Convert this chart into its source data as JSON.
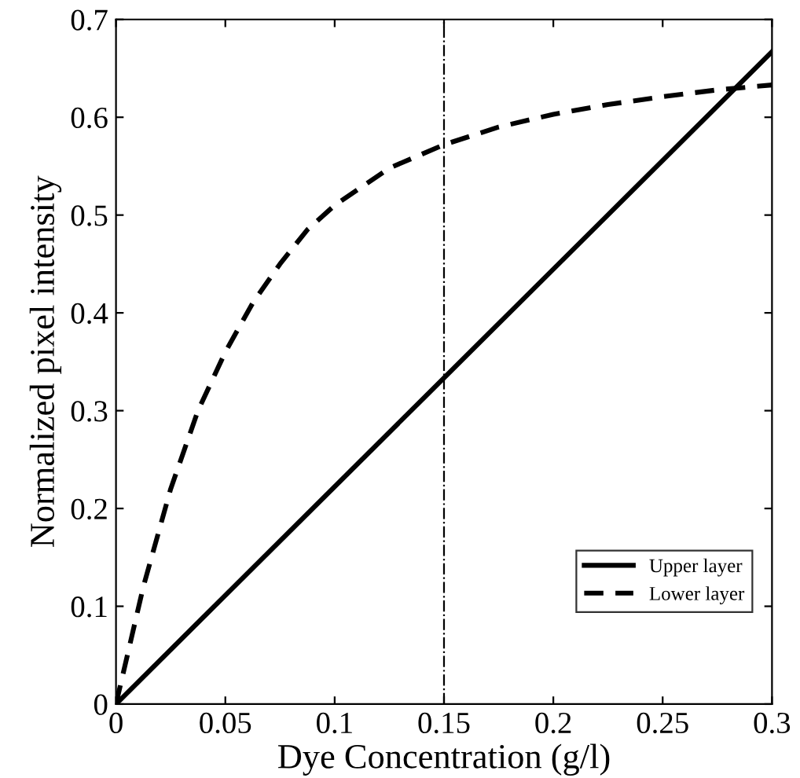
{
  "chart_data": {
    "type": "line",
    "xlabel": "Dye Concentration (g/l)",
    "ylabel": "Normalized pixel intensity",
    "xlim": [
      0,
      0.3
    ],
    "ylim": [
      0,
      0.7
    ],
    "xticks": [
      0,
      0.05,
      0.1,
      0.15,
      0.2,
      0.25,
      0.3
    ],
    "yticks": [
      0,
      0.1,
      0.2,
      0.3,
      0.4,
      0.5,
      0.6,
      0.7
    ],
    "series": [
      {
        "name": "Upper layer",
        "color": "#000000",
        "line_style": "solid",
        "x": [
          0,
          0.3
        ],
        "values": [
          0,
          0.667
        ]
      },
      {
        "name": "Lower layer",
        "color": "#000000",
        "line_style": "dashed",
        "x": [
          0,
          0.0125,
          0.025,
          0.0375,
          0.05,
          0.0625,
          0.075,
          0.0875,
          0.1,
          0.125,
          0.15,
          0.175,
          0.2,
          0.225,
          0.25,
          0.275,
          0.3
        ],
        "values": [
          0,
          0.12,
          0.22,
          0.3,
          0.36,
          0.41,
          0.45,
          0.485,
          0.51,
          0.548,
          0.572,
          0.59,
          0.603,
          0.613,
          0.621,
          0.628,
          0.633
        ]
      }
    ],
    "ref_lines": [
      {
        "axis": "x",
        "value": 0.15,
        "color": "#000000",
        "line_style": "dashdot"
      }
    ],
    "legend": "bottom right",
    "grid": false,
    "marker": "none"
  }
}
